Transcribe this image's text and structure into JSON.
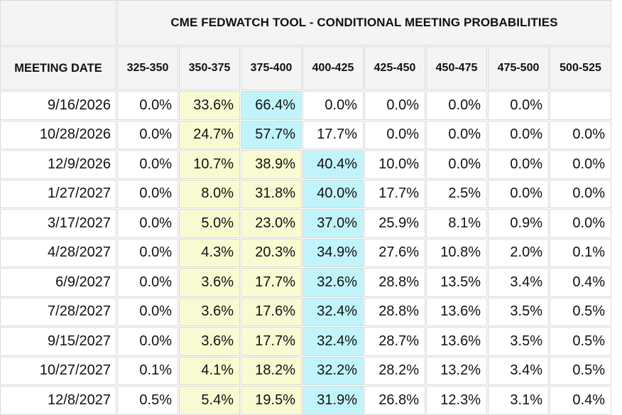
{
  "title": "CME FEDWATCH TOOL - CONDITIONAL MEETING PROBABILITIES",
  "header": {
    "date_label": "MEETING DATE",
    "ranges": [
      "325-350",
      "350-375",
      "375-400",
      "400-425",
      "425-450",
      "450-475",
      "475-500",
      "500-525"
    ]
  },
  "highlight_colors": {
    "secondary": "#fafad2",
    "most_likely": "#c0f4fa"
  },
  "rows": [
    {
      "date": "9/16/2026",
      "values": [
        "0.0%",
        "33.6%",
        "66.4%",
        "0.0%",
        "0.0%",
        "0.0%",
        "0.0%",
        ""
      ],
      "hl": [
        "",
        "y",
        "c",
        "",
        "",
        "",
        "",
        ""
      ]
    },
    {
      "date": "10/28/2026",
      "values": [
        "0.0%",
        "24.7%",
        "57.7%",
        "17.7%",
        "0.0%",
        "0.0%",
        "0.0%",
        "0.0%"
      ],
      "hl": [
        "",
        "y",
        "c",
        "",
        "",
        "",
        "",
        ""
      ]
    },
    {
      "date": "12/9/2026",
      "values": [
        "0.0%",
        "10.7%",
        "38.9%",
        "40.4%",
        "10.0%",
        "0.0%",
        "0.0%",
        "0.0%"
      ],
      "hl": [
        "",
        "y",
        "y",
        "c",
        "",
        "",
        "",
        ""
      ]
    },
    {
      "date": "1/27/2027",
      "values": [
        "0.0%",
        "8.0%",
        "31.8%",
        "40.0%",
        "17.7%",
        "2.5%",
        "0.0%",
        "0.0%"
      ],
      "hl": [
        "",
        "y",
        "y",
        "c",
        "",
        "",
        "",
        ""
      ]
    },
    {
      "date": "3/17/2027",
      "values": [
        "0.0%",
        "5.0%",
        "23.0%",
        "37.0%",
        "25.9%",
        "8.1%",
        "0.9%",
        "0.0%"
      ],
      "hl": [
        "",
        "y",
        "y",
        "c",
        "",
        "",
        "",
        ""
      ]
    },
    {
      "date": "4/28/2027",
      "values": [
        "0.0%",
        "4.3%",
        "20.3%",
        "34.9%",
        "27.6%",
        "10.8%",
        "2.0%",
        "0.1%"
      ],
      "hl": [
        "",
        "y",
        "y",
        "c",
        "",
        "",
        "",
        ""
      ]
    },
    {
      "date": "6/9/2027",
      "values": [
        "0.0%",
        "3.6%",
        "17.7%",
        "32.6%",
        "28.8%",
        "13.5%",
        "3.4%",
        "0.4%"
      ],
      "hl": [
        "",
        "y",
        "y",
        "c",
        "",
        "",
        "",
        ""
      ]
    },
    {
      "date": "7/28/2027",
      "values": [
        "0.0%",
        "3.6%",
        "17.6%",
        "32.4%",
        "28.8%",
        "13.6%",
        "3.5%",
        "0.5%"
      ],
      "hl": [
        "",
        "y",
        "y",
        "c",
        "",
        "",
        "",
        ""
      ]
    },
    {
      "date": "9/15/2027",
      "values": [
        "0.0%",
        "3.6%",
        "17.7%",
        "32.4%",
        "28.7%",
        "13.6%",
        "3.5%",
        "0.5%"
      ],
      "hl": [
        "",
        "y",
        "y",
        "c",
        "",
        "",
        "",
        ""
      ]
    },
    {
      "date": "10/27/2027",
      "values": [
        "0.1%",
        "4.1%",
        "18.2%",
        "32.2%",
        "28.2%",
        "13.2%",
        "3.4%",
        "0.5%"
      ],
      "hl": [
        "",
        "y",
        "y",
        "c",
        "",
        "",
        "",
        ""
      ]
    },
    {
      "date": "12/8/2027",
      "values": [
        "0.5%",
        "5.4%",
        "19.5%",
        "31.9%",
        "26.8%",
        "12.3%",
        "3.1%",
        "0.4%"
      ],
      "hl": [
        "",
        "y",
        "y",
        "c",
        "",
        "",
        "",
        ""
      ]
    }
  ]
}
